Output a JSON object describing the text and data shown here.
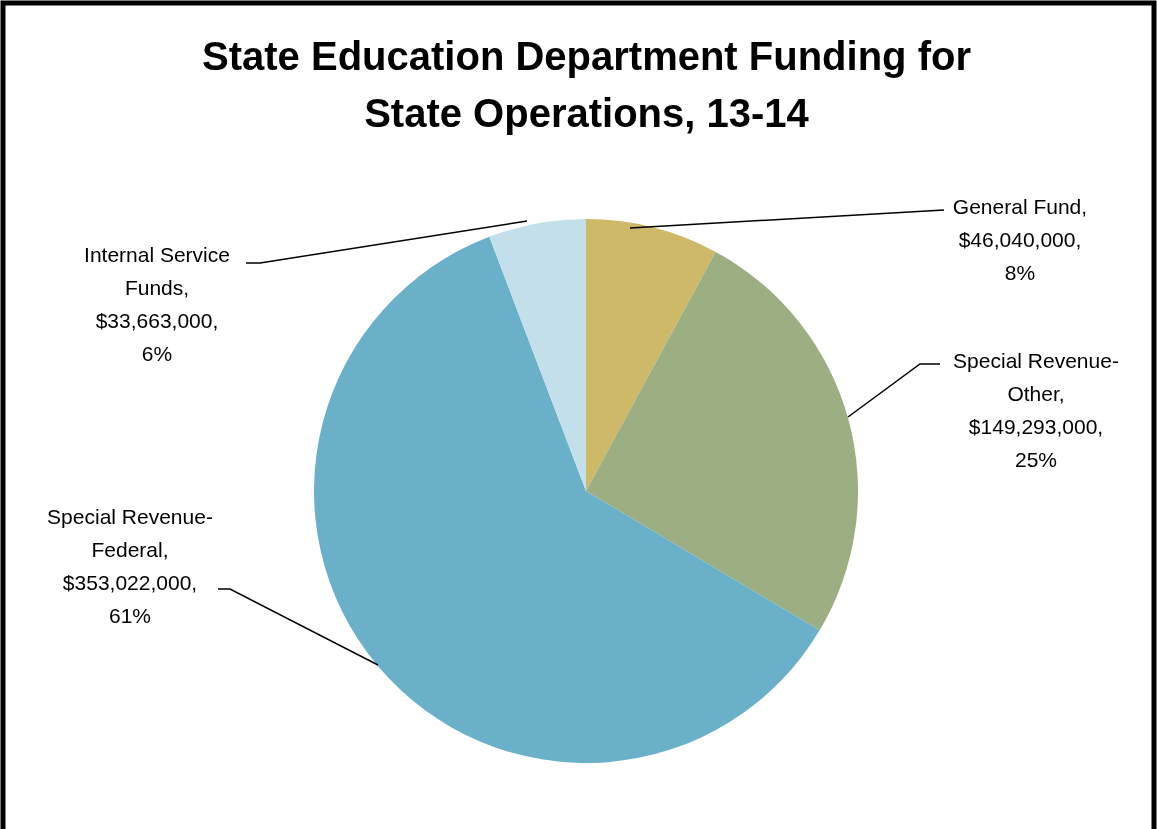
{
  "chart_data": {
    "type": "pie",
    "title": "State Education Department Funding for State Operations, 13-14",
    "categories": [
      "General Fund",
      "Special Revenue-Other",
      "Special Revenue-Federal",
      "Internal Service Funds"
    ],
    "values": [
      46040000,
      149293000,
      353022000,
      33663000
    ],
    "colors": [
      "#cdb967",
      "#9baf83",
      "#6bb0c9",
      "#c3dfe9"
    ],
    "value_labels": [
      ",\n$46,040,000,\n8%",
      ",\n$149,293,000,\n25%",
      ",\n$353,022,000,\n61%",
      ",\n$33,663,000,\n6%"
    ]
  }
}
